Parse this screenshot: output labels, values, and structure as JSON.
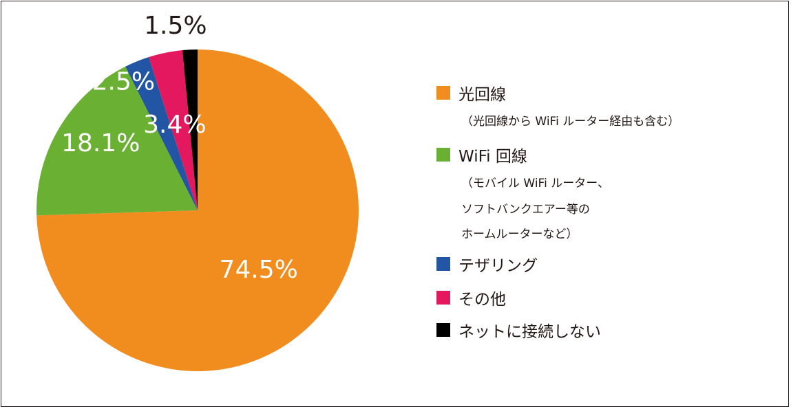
{
  "chart_data": {
    "type": "pie",
    "start": "top",
    "direction": "clockwise",
    "slices": [
      {
        "label": "光回線",
        "note": "（光回線から WiFi ルーター経由も含む）",
        "value": 74.5,
        "value_label": "74.5%",
        "color": "#F18C1E"
      },
      {
        "label": "WiFi 回線",
        "note": "（モバイル WiFi ルーター、|ソフトバンクエアー等の|ホームルーターなど）",
        "value": 18.1,
        "value_label": "18.1%",
        "color": "#6AB032"
      },
      {
        "label": "テザリング",
        "note": "",
        "value": 2.5,
        "value_label": "2.5%",
        "color": "#2355A5"
      },
      {
        "label": "その他",
        "note": "",
        "value": 3.4,
        "value_label": "3.4%",
        "color": "#E4185F"
      },
      {
        "label": "ネットに接続しない",
        "note": "",
        "value": 1.5,
        "value_label": "1.5%",
        "color": "#000000"
      }
    ]
  },
  "legend": {
    "items": [
      {
        "label": "光回線",
        "color": "#F18C1E",
        "notes": [
          "（光回線から WiFi ルーター経由も含む）"
        ]
      },
      {
        "label": "WiFi 回線",
        "color": "#6AB032",
        "notes": [
          "（モバイル WiFi ルーター、",
          "ソフトバンクエアー等の",
          "ホームルーターなど）"
        ]
      },
      {
        "label": "テザリング",
        "color": "#2355A5",
        "notes": []
      },
      {
        "label": "その他",
        "color": "#E4185F",
        "notes": []
      },
      {
        "label": "ネットに接続しない",
        "color": "#000000",
        "notes": []
      }
    ]
  }
}
